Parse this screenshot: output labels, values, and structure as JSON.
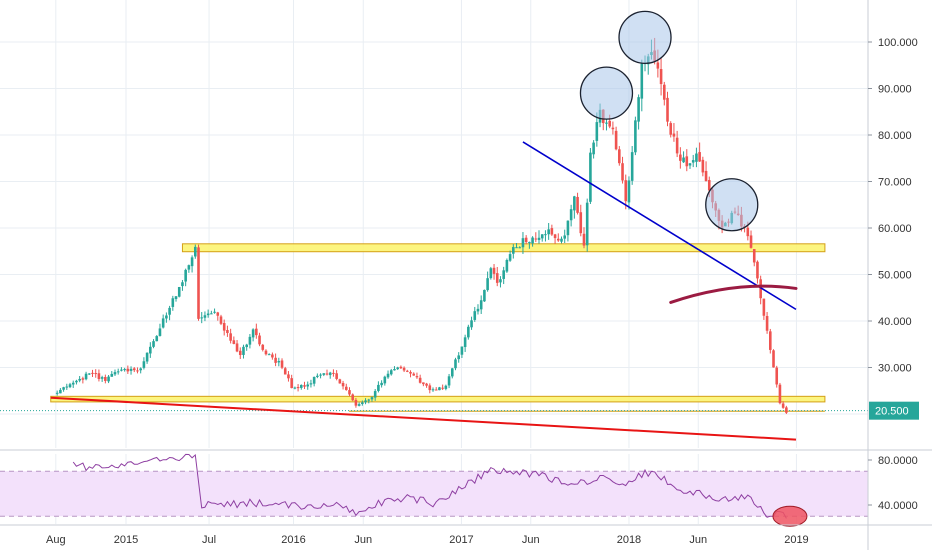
{
  "chart_data": {
    "type": "candlestick",
    "price_panel": {
      "y_ticks": [
        {
          "value": 100,
          "label": "100.000"
        },
        {
          "value": 90,
          "label": "90.000"
        },
        {
          "value": 80,
          "label": "80.000"
        },
        {
          "value": 70,
          "label": "70.000"
        },
        {
          "value": 60,
          "label": "60.000"
        },
        {
          "value": 50,
          "label": "50.000"
        },
        {
          "value": 40,
          "label": "40.000"
        },
        {
          "value": 30,
          "label": "30.000"
        }
      ],
      "ylim": [
        14,
        108
      ],
      "last_price": {
        "value": 20.5,
        "label": "20.500",
        "color": "#26a69a"
      },
      "colors": {
        "up": "#26a69a",
        "down": "#ef5350"
      },
      "candle_path": [
        [
          "2014-07-28",
          24.5
        ],
        [
          "2014-09-15",
          27
        ],
        [
          "2014-10-20",
          29
        ],
        [
          "2014-11-17",
          27
        ],
        [
          "2014-12-22",
          30
        ],
        [
          "2015-01-26",
          29
        ],
        [
          "2015-02-23",
          34
        ],
        [
          "2015-03-23",
          40
        ],
        [
          "2015-04-20",
          46
        ],
        [
          "2015-05-18",
          52
        ],
        [
          "2015-06-01",
          56
        ],
        [
          "2015-06-08",
          40
        ],
        [
          "2015-07-13",
          42
        ],
        [
          "2015-08-10",
          37
        ],
        [
          "2015-09-07",
          33
        ],
        [
          "2015-10-05",
          38
        ],
        [
          "2015-11-02",
          33
        ],
        [
          "2015-11-30",
          31
        ],
        [
          "2015-12-28",
          26
        ],
        [
          "2016-01-25",
          26
        ],
        [
          "2016-02-22",
          28
        ],
        [
          "2016-03-21",
          29
        ],
        [
          "2016-04-18",
          26
        ],
        [
          "2016-05-16",
          22
        ],
        [
          "2016-06-13",
          23
        ],
        [
          "2016-07-11",
          27
        ],
        [
          "2016-08-08",
          30
        ],
        [
          "2016-09-05",
          29
        ],
        [
          "2016-10-03",
          27
        ],
        [
          "2016-10-31",
          25
        ],
        [
          "2016-11-28",
          26
        ],
        [
          "2016-12-26",
          33
        ],
        [
          "2017-01-23",
          40
        ],
        [
          "2017-02-20",
          46
        ],
        [
          "2017-03-06",
          52
        ],
        [
          "2017-03-20",
          48
        ],
        [
          "2017-04-17",
          55
        ],
        [
          "2017-05-15",
          57
        ],
        [
          "2017-06-12",
          58
        ],
        [
          "2017-07-10",
          60
        ],
        [
          "2017-08-07",
          57
        ],
        [
          "2017-09-04",
          66
        ],
        [
          "2017-09-25",
          56
        ],
        [
          "2017-10-09",
          77
        ],
        [
          "2017-10-30",
          84
        ],
        [
          "2017-11-27",
          80
        ],
        [
          "2017-12-25",
          66
        ],
        [
          "2018-01-15",
          82
        ],
        [
          "2018-01-29",
          96
        ],
        [
          "2018-02-19",
          98
        ],
        [
          "2018-03-05",
          93
        ],
        [
          "2018-04-02",
          80
        ],
        [
          "2018-04-30",
          74
        ],
        [
          "2018-05-28",
          76
        ],
        [
          "2018-06-25",
          68
        ],
        [
          "2018-07-23",
          60
        ],
        [
          "2018-08-20",
          63
        ],
        [
          "2018-09-17",
          58
        ],
        [
          "2018-10-01",
          52
        ],
        [
          "2018-10-15",
          45
        ],
        [
          "2018-10-29",
          38
        ],
        [
          "2018-11-12",
          30
        ],
        [
          "2018-11-26",
          22
        ],
        [
          "2018-12-10",
          20.5
        ]
      ],
      "trendlines": [
        {
          "name": "descending",
          "color": "#0000cc",
          "points": [
            [
              "2017-05-15",
              78.5
            ],
            [
              "2018-12-31",
              42.5
            ]
          ]
        },
        {
          "name": "support",
          "color": "#e81414",
          "points": [
            [
              "2014-07-21",
              23.5
            ],
            [
              "2018-12-31",
              14.5
            ]
          ]
        }
      ],
      "zones": [
        {
          "name": "resistance-zone",
          "color": "#fcf36a",
          "border": "#d4a017",
          "from": "2015-05-04",
          "to": "2019-03-04",
          "low": 54.9,
          "high": 56.6
        },
        {
          "name": "support-zone",
          "color": "#fcf36a",
          "border": "#d4a017",
          "from": "2014-07-21",
          "to": "2019-03-04",
          "low": 22.6,
          "high": 23.8
        }
      ],
      "reference_lines": [
        {
          "name": "base-level",
          "color": "#d4a017",
          "value": 20.6,
          "from": "2016-05-01",
          "to": "2019-03-04"
        }
      ],
      "circles": [
        {
          "name": "peak-circle-1",
          "date": "2017-11-13",
          "value": 89
        },
        {
          "name": "peak-circle-2",
          "date": "2018-02-05",
          "value": 101
        },
        {
          "name": "peak-circle-3",
          "date": "2018-08-13",
          "value": 65
        }
      ],
      "arc": {
        "name": "rounded-top-arc",
        "color": "#9b1b42",
        "points": [
          [
            "2018-04-02",
            44
          ],
          [
            "2018-07-01",
            47
          ],
          [
            "2018-10-01",
            48.3
          ],
          [
            "2018-12-31",
            47
          ]
        ]
      }
    },
    "rsi_panel": {
      "y_ticks": [
        {
          "value": 80,
          "label": "80.0000"
        },
        {
          "value": 40,
          "label": "40.0000"
        }
      ],
      "band": [
        30,
        70
      ],
      "ylim": [
        22,
        93
      ],
      "color": "#8e3fa2",
      "band_fill": "#f3e1fb",
      "rsi_path": [
        [
          "2014-09-08",
          75
        ],
        [
          "2014-11-10",
          73
        ],
        [
          "2015-01-05",
          76
        ],
        [
          "2015-03-02",
          79
        ],
        [
          "2015-05-04",
          82
        ],
        [
          "2015-06-01",
          82
        ],
        [
          "2015-06-15",
          40
        ],
        [
          "2015-08-10",
          40
        ],
        [
          "2015-10-05",
          42
        ],
        [
          "2015-12-07",
          40
        ],
        [
          "2016-02-01",
          38
        ],
        [
          "2016-04-04",
          40
        ],
        [
          "2016-05-16",
          32
        ],
        [
          "2016-07-04",
          42
        ],
        [
          "2016-09-05",
          47
        ],
        [
          "2016-11-07",
          41
        ],
        [
          "2017-01-02",
          55
        ],
        [
          "2017-02-27",
          70
        ],
        [
          "2017-04-24",
          69
        ],
        [
          "2017-06-26",
          66
        ],
        [
          "2017-08-28",
          58
        ],
        [
          "2017-10-30",
          64
        ],
        [
          "2017-12-25",
          60
        ],
        [
          "2018-02-19",
          70
        ],
        [
          "2018-04-16",
          55
        ],
        [
          "2018-06-18",
          48
        ],
        [
          "2018-08-13",
          45
        ],
        [
          "2018-09-24",
          47
        ],
        [
          "2018-10-22",
          33
        ],
        [
          "2018-12-10",
          30
        ]
      ],
      "highlight": {
        "name": "oversold-highlight",
        "date": "2018-11-26",
        "value": 30
      }
    },
    "x_axis": {
      "ticks": [
        {
          "date": "2014-08-01",
          "label": "Aug"
        },
        {
          "date": "2015-01-01",
          "label": "2015"
        },
        {
          "date": "2015-07-01",
          "label": "Jul"
        },
        {
          "date": "2016-01-01",
          "label": "2016"
        },
        {
          "date": "2016-06-01",
          "label": "Jun"
        },
        {
          "date": "2017-01-01",
          "label": "2017"
        },
        {
          "date": "2017-06-01",
          "label": "Jun"
        },
        {
          "date": "2018-01-01",
          "label": "2018"
        },
        {
          "date": "2018-06-01",
          "label": "Jun"
        },
        {
          "date": "2019-01-01",
          "label": "2019"
        }
      ]
    }
  }
}
